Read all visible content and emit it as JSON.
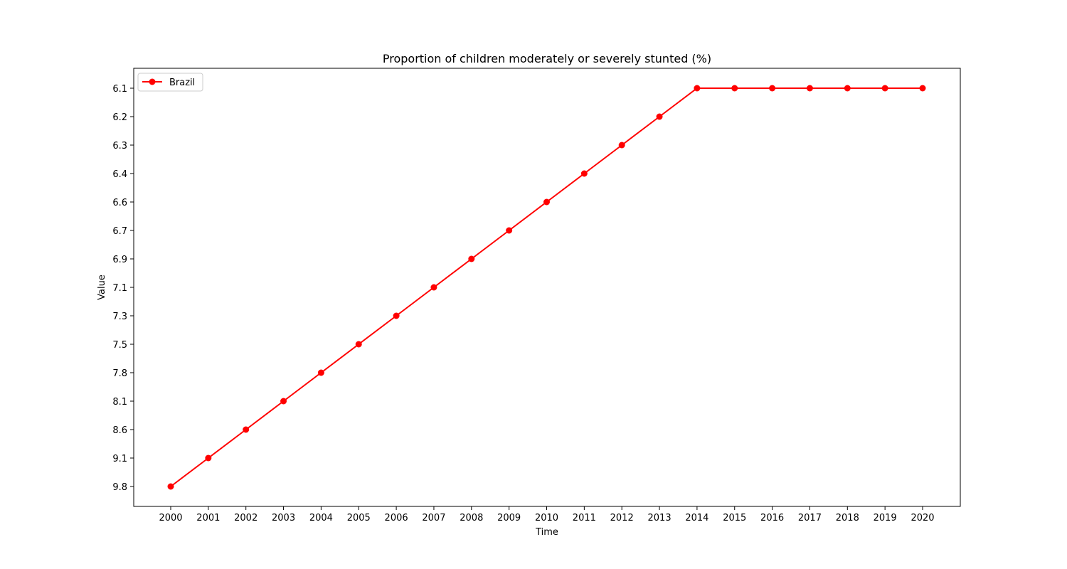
{
  "chart_data": {
    "type": "line",
    "title": "Proportion of children moderately or severely stunted (%)",
    "xlabel": "Time",
    "ylabel": "Value",
    "x": [
      "2000",
      "2001",
      "2002",
      "2003",
      "2004",
      "2005",
      "2006",
      "2007",
      "2008",
      "2009",
      "2010",
      "2011",
      "2012",
      "2013",
      "2014",
      "2015",
      "2016",
      "2017",
      "2018",
      "2019",
      "2020"
    ],
    "y_ticks": [
      "9.8",
      "9.1",
      "8.6",
      "8.1",
      "7.8",
      "7.5",
      "7.3",
      "7.1",
      "6.9",
      "6.7",
      "6.6",
      "6.4",
      "6.3",
      "6.2",
      "6.1"
    ],
    "y_axis_categorical": true,
    "grid": false,
    "legend_position": "top-left",
    "series": [
      {
        "name": "Brazil",
        "color": "#ff0000",
        "marker": "circle",
        "values": [
          "9.8",
          "9.1",
          "8.6",
          "8.1",
          "7.8",
          "7.5",
          "7.3",
          "7.1",
          "6.9",
          "6.7",
          "6.6",
          "6.4",
          "6.3",
          "6.2",
          "6.1",
          "6.1",
          "6.1",
          "6.1",
          "6.1",
          "6.1",
          "6.1"
        ]
      }
    ]
  }
}
